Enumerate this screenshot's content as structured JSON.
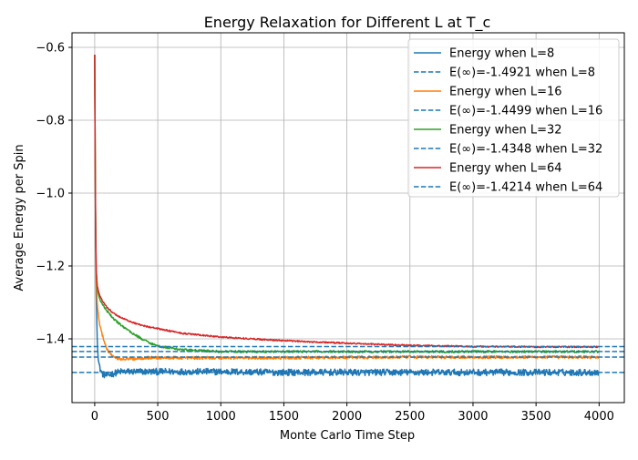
{
  "chart_data": {
    "type": "line",
    "title": "Energy Relaxation for Different L at T_c",
    "xlabel": "Monte Carlo Time Step",
    "ylabel": "Average Energy per Spin",
    "xlim": [
      -180,
      4200
    ],
    "ylim": [
      -1.575,
      -0.56
    ],
    "xticks": [
      0,
      500,
      1000,
      1500,
      2000,
      2500,
      3000,
      3500,
      4000
    ],
    "yticks": [
      -1.4,
      -1.2,
      -1.0,
      -0.8,
      -0.6
    ],
    "xtick_labels": [
      "0",
      "500",
      "1000",
      "1500",
      "2000",
      "2500",
      "3000",
      "3500",
      "4000"
    ],
    "ytick_labels": [
      "−1.4",
      "−1.2",
      "−1.0",
      "−0.8",
      "−0.6"
    ],
    "grid": true,
    "legend_position": "top-right",
    "series": [
      {
        "name": "Energy when L=8",
        "color": "#1f77b4",
        "style": "solid",
        "x": [
          0,
          5,
          10,
          20,
          30,
          40,
          60,
          80,
          100,
          150,
          200,
          300,
          400,
          500,
          700,
          1000,
          1500,
          2000,
          2500,
          3000,
          3500,
          4000
        ],
        "y": [
          -0.62,
          -1.0,
          -1.25,
          -1.4,
          -1.46,
          -1.48,
          -1.495,
          -1.5,
          -1.5,
          -1.495,
          -1.49,
          -1.49,
          -1.49,
          -1.49,
          -1.49,
          -1.49,
          -1.492,
          -1.492,
          -1.492,
          -1.492,
          -1.492,
          -1.492
        ],
        "noise": 0.009
      },
      {
        "name": "E(∞)=-1.4921 when L=8",
        "color": "#1f77b4",
        "style": "dashed",
        "hline": -1.4921
      },
      {
        "name": "Energy when L=16",
        "color": "#ff7f0e",
        "style": "solid",
        "x": [
          0,
          5,
          10,
          20,
          30,
          40,
          60,
          80,
          100,
          150,
          200,
          300,
          400,
          500,
          700,
          1000,
          1500,
          2000,
          2500,
          3000,
          3500,
          4000
        ],
        "y": [
          -0.62,
          -1.0,
          -1.22,
          -1.3,
          -1.34,
          -1.36,
          -1.39,
          -1.41,
          -1.43,
          -1.45,
          -1.455,
          -1.455,
          -1.452,
          -1.452,
          -1.452,
          -1.452,
          -1.452,
          -1.451,
          -1.45,
          -1.45,
          -1.45,
          -1.45
        ],
        "noise": 0.004
      },
      {
        "name": "E(∞)=-1.4499 when L=16",
        "color": "#1f77b4",
        "style": "dashed",
        "hline": -1.4499
      },
      {
        "name": "Energy when L=32",
        "color": "#2ca02c",
        "style": "solid",
        "x": [
          0,
          5,
          10,
          20,
          30,
          40,
          60,
          80,
          100,
          150,
          200,
          300,
          400,
          500,
          700,
          1000,
          1500,
          2000,
          2500,
          3000,
          3500,
          4000
        ],
        "y": [
          -0.62,
          -1.0,
          -1.2,
          -1.26,
          -1.28,
          -1.29,
          -1.305,
          -1.315,
          -1.325,
          -1.345,
          -1.36,
          -1.385,
          -1.405,
          -1.42,
          -1.43,
          -1.435,
          -1.435,
          -1.435,
          -1.435,
          -1.435,
          -1.435,
          -1.435
        ],
        "noise": 0.003
      },
      {
        "name": "E(∞)=-1.4348 when L=32",
        "color": "#1f77b4",
        "style": "dashed",
        "hline": -1.4348
      },
      {
        "name": "Energy when L=64",
        "color": "#d62728",
        "style": "solid",
        "x": [
          0,
          5,
          10,
          20,
          30,
          40,
          60,
          80,
          100,
          150,
          200,
          300,
          400,
          500,
          700,
          1000,
          1500,
          2000,
          2500,
          3000,
          3500,
          4000
        ],
        "y": [
          -0.62,
          -1.0,
          -1.2,
          -1.255,
          -1.27,
          -1.28,
          -1.295,
          -1.305,
          -1.315,
          -1.33,
          -1.34,
          -1.355,
          -1.365,
          -1.372,
          -1.385,
          -1.395,
          -1.405,
          -1.412,
          -1.418,
          -1.421,
          -1.422,
          -1.422
        ],
        "noise": 0.002
      },
      {
        "name": "E(∞)=-1.4214 when L=64",
        "color": "#1f77b4",
        "style": "dashed",
        "hline": -1.4214
      }
    ]
  }
}
